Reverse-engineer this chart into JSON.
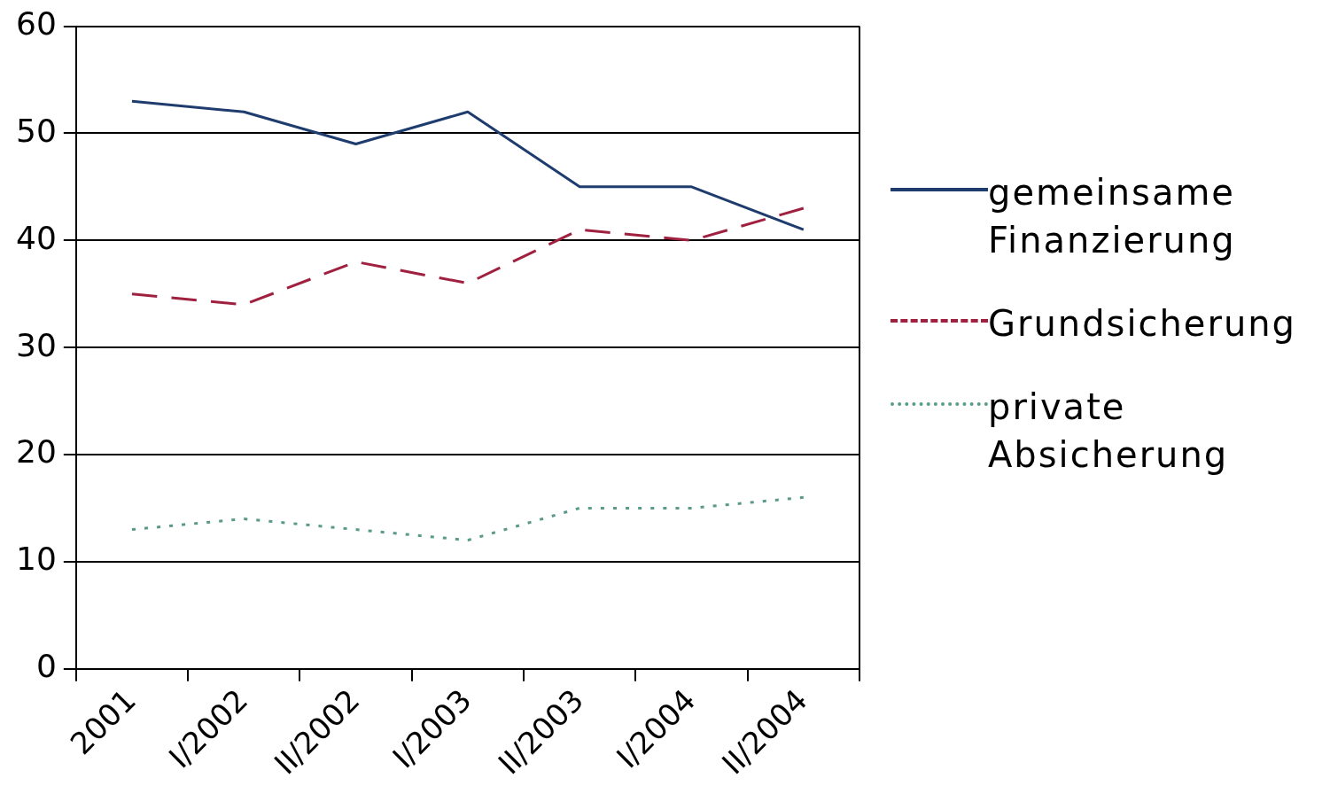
{
  "chart_data": {
    "type": "line",
    "categories": [
      "2001",
      "I/2002",
      "II/2002",
      "I/2003",
      "II/2003",
      "I/2004",
      "II/2004"
    ],
    "series": [
      {
        "name": "gemeinsame Finanzierung",
        "color": "#1f3c6e",
        "line_style": "solid",
        "values": [
          53,
          52,
          49,
          52,
          45,
          45,
          41
        ]
      },
      {
        "name": "Grundsicherung",
        "color": "#a0203f",
        "line_style": "dashed",
        "values": [
          35,
          34,
          38,
          36,
          41,
          40,
          43
        ]
      },
      {
        "name": "private Absicherung",
        "color": "#5a9a8a",
        "line_style": "dotted",
        "values": [
          13,
          14,
          13,
          12,
          15,
          15,
          16
        ]
      }
    ],
    "ylim": [
      0,
      60
    ],
    "yticks": [
      0,
      10,
      20,
      30,
      40,
      50,
      60
    ],
    "grid": "y",
    "legend": "right",
    "marker": "none"
  }
}
